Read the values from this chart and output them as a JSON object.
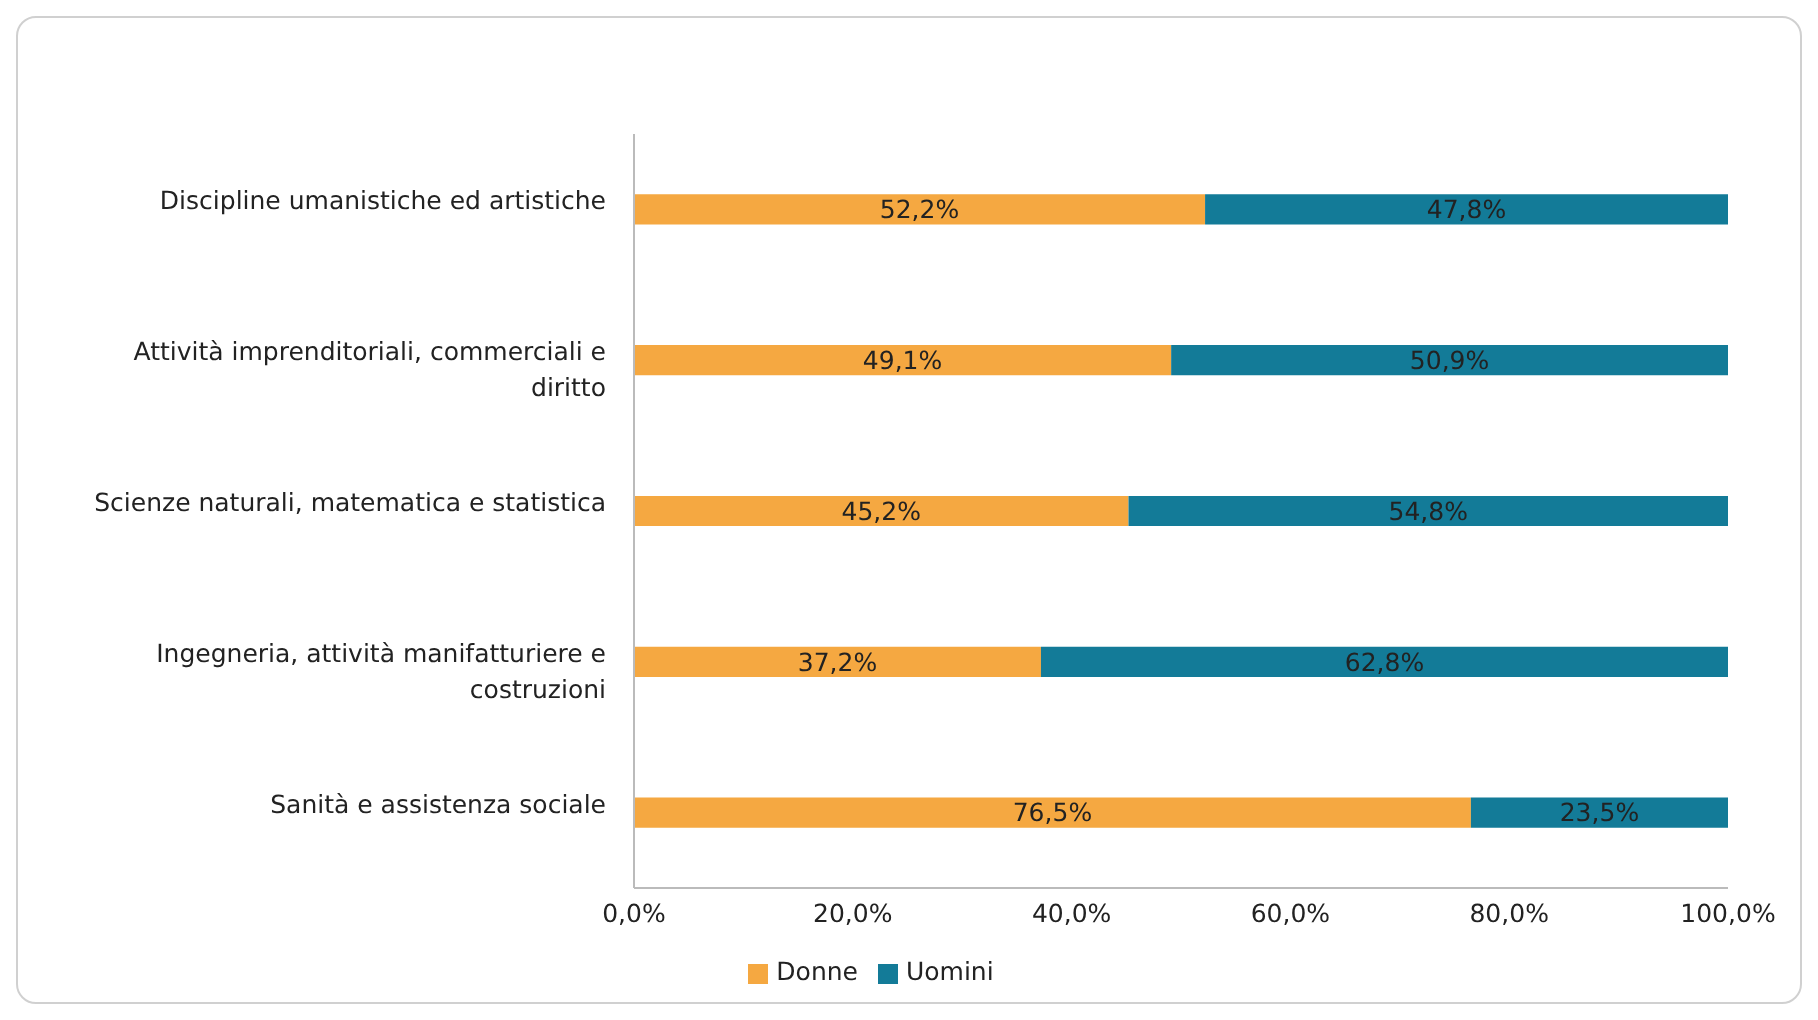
{
  "chart_data": {
    "type": "bar",
    "orientation": "horizontal",
    "stacked": true,
    "categories": [
      "Discipline umanistiche ed artistiche",
      "Attività imprenditoriali, commerciali e diritto",
      "Scienze naturali, matematica e statistica",
      "Ingegneria, attività manifatturiere e costruzioni",
      "Sanità e assistenza sociale"
    ],
    "series": [
      {
        "name": "Donne",
        "color": "#f5a841",
        "values": [
          52.2,
          49.1,
          45.2,
          37.2,
          76.5
        ],
        "value_labels": [
          "52,2%",
          "49,1%",
          "45,2%",
          "37,2%",
          "76,5%"
        ]
      },
      {
        "name": "Uomini",
        "color": "#137b98",
        "values": [
          47.8,
          50.9,
          54.8,
          62.8,
          23.5
        ],
        "value_labels": [
          "47,8%",
          "50,9%",
          "54,8%",
          "62,8%",
          "23,5%"
        ]
      }
    ],
    "xlim": [
      0,
      100
    ],
    "xticks": [
      {
        "value": 0,
        "label": "0,0%"
      },
      {
        "value": 20,
        "label": "20,0%"
      },
      {
        "value": 40,
        "label": "40,0%"
      },
      {
        "value": 60,
        "label": "60,0%"
      },
      {
        "value": 80,
        "label": "80,0%"
      },
      {
        "value": 100,
        "label": "100,0%"
      }
    ],
    "grid": false,
    "legend": "bottom"
  }
}
